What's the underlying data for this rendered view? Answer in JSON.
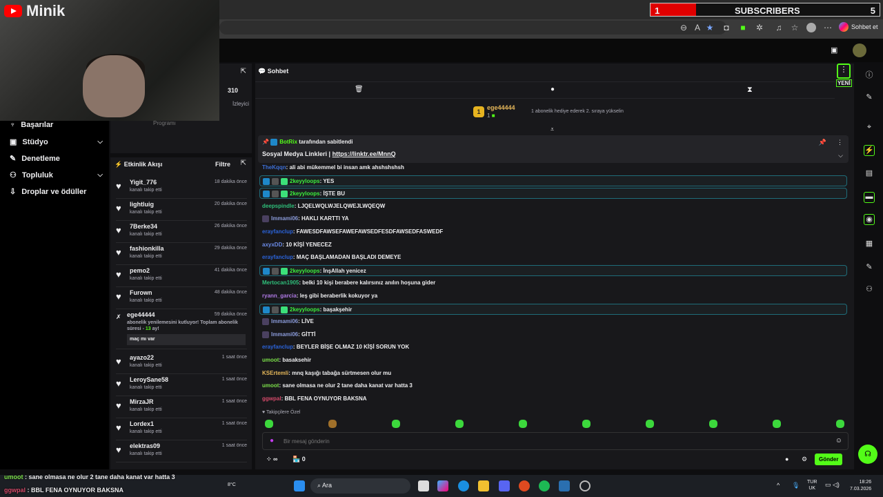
{
  "overlay": {
    "logo": "Minik",
    "subs_label": "SUBSCRIBERS",
    "subs_current": "1",
    "subs_goal": "5",
    "subs_progress": 0.2
  },
  "browser": {
    "copilot_label": "Sohbet et"
  },
  "nav": {
    "items": [
      {
        "label": "Başarılar",
        "icon": "trophy-icon"
      },
      {
        "label": "Stüdyo",
        "icon": "studio-icon",
        "expand": true
      },
      {
        "label": "Denetleme",
        "icon": "wrench-icon"
      },
      {
        "label": "Topluluk",
        "icon": "community-icon",
        "expand": true
      },
      {
        "label": "Droplar ve ödüller",
        "icon": "drops-icon"
      }
    ]
  },
  "stats": {
    "viewers": "310",
    "viewers_label": "İzleyici",
    "program": "Programı"
  },
  "feed": {
    "title": "Etkinlik Akışı",
    "filter": "Filtre",
    "items": [
      {
        "name": "Yigit_776",
        "sub": "kanalı takip etti",
        "time": "18 dakika önce"
      },
      {
        "name": "lightluig",
        "sub": "kanalı takip etti",
        "time": "20 dakika önce"
      },
      {
        "name": "7Berke34",
        "sub": "kanalı takip etti",
        "time": "26 dakika önce"
      },
      {
        "name": "fashionkilla",
        "sub": "kanalı takip etti",
        "time": "29 dakika önce"
      },
      {
        "name": "pemo2",
        "sub": "kanalı takip etti",
        "time": "41 dakika önce"
      },
      {
        "name": "Furown",
        "sub": "kanalı takip etti",
        "time": "48 dakika önce"
      }
    ],
    "resub": {
      "name": "ege44444",
      "text": "abonelik yenilemesini kutluyor! Toplam abonelik süresi -",
      "months": "13",
      "unit": "ay!",
      "message": "maç mı var",
      "time": "59 dakika önce"
    },
    "items2": [
      {
        "name": "ayazo22",
        "sub": "kanalı takip etti",
        "time": "1 saat önce"
      },
      {
        "name": "LeroySane58",
        "sub": "kanalı takip etti",
        "time": "1 saat önce"
      },
      {
        "name": "MirzaJR",
        "sub": "kanalı takip etti",
        "time": "1 saat önce"
      },
      {
        "name": "Lordex1",
        "sub": "kanalı takip etti",
        "time": "1 saat önce"
      },
      {
        "name": "elektras09",
        "sub": "kanalı takip etti",
        "time": "1 saat önce"
      }
    ]
  },
  "chat": {
    "title": "Sohbet",
    "new_badge": "YENİ",
    "gifter": {
      "rank": "1",
      "name": "ege44444",
      "count": "1",
      "hint": "1 abonelik hediye ederek 2. sıraya yükselin"
    },
    "pinned": {
      "by": "BotRix",
      "by_suffix": "tarafından sabitlendi",
      "text": "Sosyal Medya Linkleri |",
      "link": "https://linktr.ee/MnnQ"
    },
    "messages": [
      {
        "user": "TheKqqn",
        "color": "#3d6fd6",
        "text": "ali abi mükemmel bi insan amk ahshshshsh"
      },
      {
        "user": "2keyyloops",
        "color": "#3cf03c",
        "text": "YES",
        "hl": true
      },
      {
        "user": "2keyyloops",
        "color": "#3cf03c",
        "text": "İŞTE BU",
        "hl": true
      },
      {
        "user": "deepspindle",
        "color": "#2fbf7a",
        "text": "LJQELWQLWJELQWEJLWQEQW"
      },
      {
        "user": "Immami06",
        "color": "#8a9ad8",
        "text": "HAKLI KARTTI YA",
        "badge": true
      },
      {
        "user": "erayfanclup",
        "color": "#2b63d9",
        "text": "FAWESDFAWSEFAWEFAWSEDFESDFAWSEDFASWEDF"
      },
      {
        "user": "axyxDD",
        "color": "#6a8ae6",
        "text": "10 KİŞİ YENECEZ"
      },
      {
        "user": "erayfanclup",
        "color": "#2b63d9",
        "text": "MAÇ BAŞLAMADAN BAŞLADI DEMEYE"
      },
      {
        "user": "2keyyloops",
        "color": "#3cf03c",
        "text": "İnşAllah yenicez",
        "hl": true
      },
      {
        "user": "Mertocan1905",
        "color": "#2fbf7a",
        "text": "belki 10 kişi berabere kalırsınız anılın hoşuna gider"
      },
      {
        "user": "ryann_garcia",
        "color": "#b07ae6",
        "text": "leş gibi beraberlik kokuyor ya"
      },
      {
        "user": "2keyyloops",
        "color": "#3cf03c",
        "text": "başakşehir",
        "hl": true
      },
      {
        "user": "Immami06",
        "color": "#8a9ad8",
        "text": "LİVE",
        "badge": true
      },
      {
        "user": "Immami06",
        "color": "#8a9ad8",
        "text": "GİTTİ",
        "badge": true
      },
      {
        "user": "erayfanclup",
        "color": "#2b63d9",
        "text": "BEYLER BİŞE OLMAZ 10 KİŞİ SORUN YOK"
      },
      {
        "user": "umoot",
        "color": "#7ce04a",
        "text": "basaksehir"
      },
      {
        "user": "KSErtemli",
        "color": "#e6b85a",
        "text": "mnq kaşığı tabağa sürtmesen olur mu"
      },
      {
        "user": "umoot",
        "color": "#7ce04a",
        "text": "sane olmasa ne olur 2 tane daha kanat var hatta 3"
      },
      {
        "user": "ggwpal",
        "color": "#d64a6a",
        "text": "BBL FENA OYNUYOR BAKSNA"
      }
    ],
    "followers_only": "Takipçilere Özel",
    "input_placeholder": "Bir mesaj gönderin",
    "points": "∞",
    "store_count": "0",
    "send": "Gönder"
  },
  "stream_overlay": {
    "lines": [
      {
        "user": "umoot",
        "text": " : sane olmasa ne olur 2 tane daha kanat var hatta 3"
      },
      {
        "user": "ggwpal",
        "text": " : BBL FENA OYNUYOR BAKSNA"
      }
    ]
  },
  "taskbar": {
    "search": "Ara",
    "weather": "8°C",
    "lang1": "TUR",
    "lang2": "UK",
    "time": "18:26",
    "date": "7.03.2026"
  }
}
